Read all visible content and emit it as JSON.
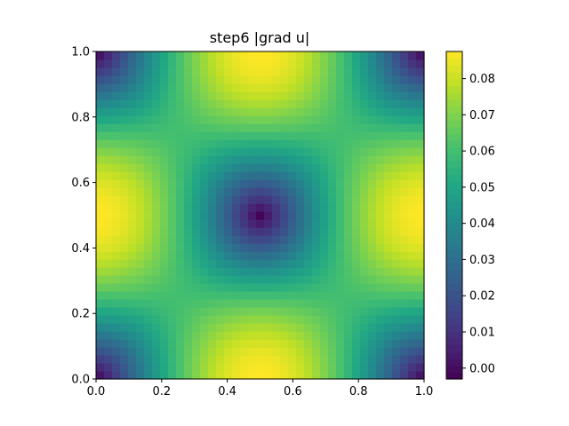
{
  "chart_data": {
    "type": "heatmap",
    "title": "step6 |grad u|",
    "xlabel": "",
    "ylabel": "",
    "xlim": [
      0.0,
      1.0
    ],
    "ylim": [
      0.0,
      1.0
    ],
    "x_ticks": [
      "0.0",
      "0.2",
      "0.4",
      "0.6",
      "0.8",
      "1.0"
    ],
    "y_ticks": [
      "0.0",
      "0.2",
      "0.4",
      "0.6",
      "0.8",
      "1.0"
    ],
    "colorbar": {
      "colormap": "viridis",
      "range": [
        -0.003,
        0.0875
      ],
      "ticks": [
        "0.00",
        "0.01",
        "0.02",
        "0.03",
        "0.04",
        "0.05",
        "0.06",
        "0.07",
        "0.08"
      ]
    },
    "field_description_values": {
      "center_value": -0.002,
      "edge_midpoint_value": 0.087,
      "corner_value": 0.0
    },
    "grid": false,
    "colors": {
      "viridis_low": "#440154",
      "viridis_high": "#fde725"
    }
  }
}
